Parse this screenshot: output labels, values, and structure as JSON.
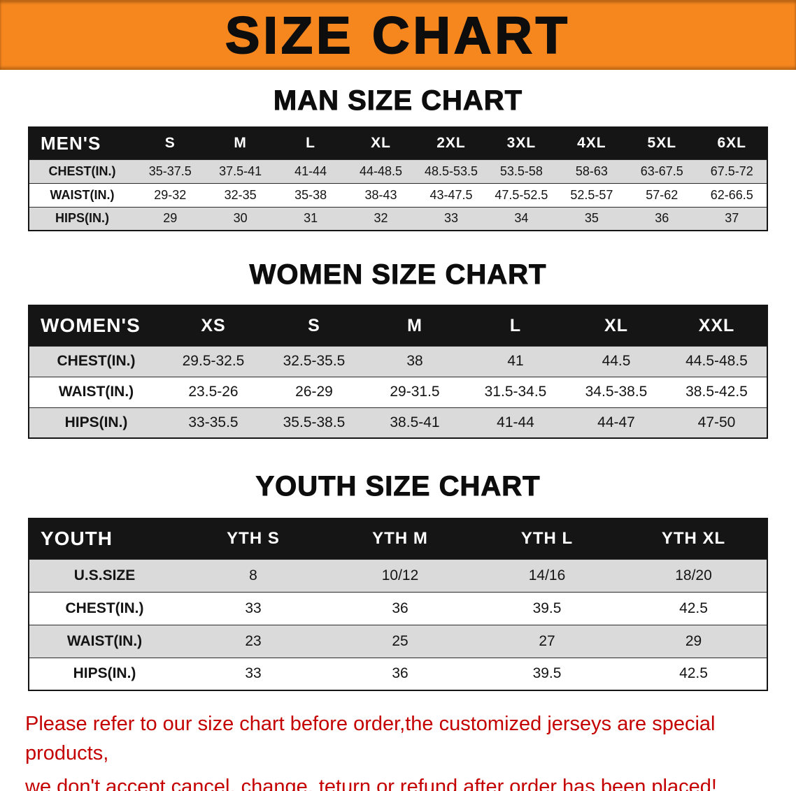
{
  "banner": {
    "title": "SIZE CHART",
    "bg_color": "#F6871F",
    "text_color": "#0d0d0d"
  },
  "sections": [
    {
      "id": "men",
      "heading": "MAN SIZE CHART",
      "table": {
        "header": [
          "MEN'S",
          "S",
          "M",
          "L",
          "XL",
          "2XL",
          "3XL",
          "4XL",
          "5XL",
          "6XL"
        ],
        "rows": [
          [
            "CHEST(IN.)",
            "35-37.5",
            "37.5-41",
            "41-44",
            "44-48.5",
            "48.5-53.5",
            "53.5-58",
            "58-63",
            "63-67.5",
            "67.5-72"
          ],
          [
            "WAIST(IN.)",
            "29-32",
            "32-35",
            "35-38",
            "38-43",
            "43-47.5",
            "47.5-52.5",
            "52.5-57",
            "57-62",
            "62-66.5"
          ],
          [
            "HIPS(IN.)",
            "29",
            "30",
            "31",
            "32",
            "33",
            "34",
            "35",
            "36",
            "37"
          ]
        ]
      }
    },
    {
      "id": "women",
      "heading": "WOMEN SIZE CHART",
      "table": {
        "header": [
          "WOMEN'S",
          "XS",
          "S",
          "M",
          "L",
          "XL",
          "XXL"
        ],
        "rows": [
          [
            "CHEST(IN.)",
            "29.5-32.5",
            "32.5-35.5",
            "38",
            "41",
            "44.5",
            "44.5-48.5"
          ],
          [
            "WAIST(IN.)",
            "23.5-26",
            "26-29",
            "29-31.5",
            "31.5-34.5",
            "34.5-38.5",
            "38.5-42.5"
          ],
          [
            "HIPS(IN.)",
            "33-35.5",
            "35.5-38.5",
            "38.5-41",
            "41-44",
            "44-47",
            "47-50"
          ]
        ]
      }
    },
    {
      "id": "youth",
      "heading": "YOUTH SIZE CHART",
      "table": {
        "header": [
          "YOUTH",
          "YTH S",
          "YTH M",
          "YTH L",
          "YTH XL"
        ],
        "rows": [
          [
            "U.S.SIZE",
            "8",
            "10/12",
            "14/16",
            "18/20"
          ],
          [
            "CHEST(IN.)",
            "33",
            "36",
            "39.5",
            "42.5"
          ],
          [
            "WAIST(IN.)",
            "23",
            "25",
            "27",
            "29"
          ],
          [
            "HIPS(IN.)",
            "33",
            "36",
            "39.5",
            "42.5"
          ]
        ]
      }
    }
  ],
  "disclaimer": {
    "color": "#C40000",
    "lines": [
      "Please refer to our size chart before order,the customized jerseys are special products,",
      "we don't accept cancel, change, teturn or refund after order has been placed!"
    ]
  },
  "row_stripe_color": "#DADADA",
  "table_header_color": "#151515"
}
